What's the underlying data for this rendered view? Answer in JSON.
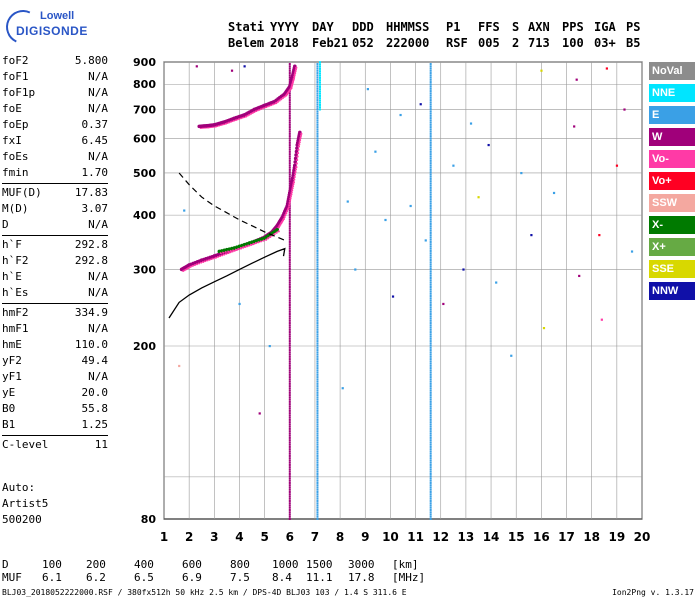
{
  "logo": {
    "line1": "Lowell",
    "line2": "DIGISONDE"
  },
  "header": {
    "labels": [
      "Stati",
      "YYYY",
      "DAY",
      "DDD",
      "HHMMSS",
      "P1",
      "FFS",
      "S",
      "AXN",
      "PPS",
      "IGA",
      "PS"
    ],
    "values": [
      "Belem",
      "2018",
      "Feb21",
      "052",
      "222000",
      "RSF",
      "005",
      "2",
      "713",
      "100",
      "03+",
      "B5"
    ]
  },
  "params": [
    {
      "group": 1,
      "name": "foF2",
      "value": "5.800"
    },
    {
      "group": 1,
      "name": "foF1",
      "value": "N/A"
    },
    {
      "group": 1,
      "name": "foF1p",
      "value": "N/A"
    },
    {
      "group": 1,
      "name": "foE",
      "value": "N/A"
    },
    {
      "group": 1,
      "name": "foEp",
      "value": "0.37"
    },
    {
      "group": 1,
      "name": "fxI",
      "value": "6.45"
    },
    {
      "group": 1,
      "name": "foEs",
      "value": "N/A"
    },
    {
      "group": 1,
      "name": "fmin",
      "value": "1.70"
    },
    {
      "group": 2,
      "name": "MUF(D)",
      "value": "17.83"
    },
    {
      "group": 2,
      "name": "M(D)",
      "value": "3.07"
    },
    {
      "group": 2,
      "name": "D",
      "value": "N/A"
    },
    {
      "group": 3,
      "name": "h`F",
      "value": "292.8"
    },
    {
      "group": 3,
      "name": "h`F2",
      "value": "292.8"
    },
    {
      "group": 3,
      "name": "h`E",
      "value": "N/A"
    },
    {
      "group": 3,
      "name": "h`Es",
      "value": "N/A"
    },
    {
      "group": 4,
      "name": "hmF2",
      "value": "334.9"
    },
    {
      "group": 4,
      "name": "hmF1",
      "value": "N/A"
    },
    {
      "group": 4,
      "name": "hmE",
      "value": "110.0"
    },
    {
      "group": 4,
      "name": "yF2",
      "value": "49.4"
    },
    {
      "group": 4,
      "name": "yF1",
      "value": "N/A"
    },
    {
      "group": 4,
      "name": "yE",
      "value": "20.0"
    },
    {
      "group": 4,
      "name": "B0",
      "value": "55.8"
    },
    {
      "group": 4,
      "name": "B1",
      "value": "1.25"
    },
    {
      "group": 5,
      "name": "C-level",
      "value": "11"
    }
  ],
  "auto": {
    "line1": "Auto:",
    "line2": "Artist5",
    "line3": "500200"
  },
  "legend": [
    {
      "label": "NoVal",
      "color": "#8c8c8c"
    },
    {
      "label": "NNE",
      "color": "#00e5ff"
    },
    {
      "label": "E",
      "color": "#3aa0e6"
    },
    {
      "label": "W",
      "color": "#a0007a"
    },
    {
      "label": "Vo-",
      "color": "#ff3aa6"
    },
    {
      "label": "Vo+",
      "color": "#ff0022"
    },
    {
      "label": "SSW",
      "color": "#f4a8a0"
    },
    {
      "label": "X-",
      "color": "#007a00"
    },
    {
      "label": "X+",
      "color": "#66aa44"
    },
    {
      "label": "SSE",
      "color": "#d8d800"
    },
    {
      "label": "NNW",
      "color": "#1010a8"
    }
  ],
  "dmuf": {
    "d_label": "D",
    "d_values": [
      "100",
      "200",
      "400",
      "600",
      "800",
      "1000",
      "1500",
      "3000",
      "[km]"
    ],
    "muf_label": "MUF",
    "muf_values": [
      "6.1",
      "6.2",
      "6.5",
      "6.9",
      "7.5",
      "8.4",
      "11.1",
      "17.8",
      "[MHz]"
    ]
  },
  "footer": {
    "left": "BLJ03_2018052222000.RSF / 380fx512h 50 kHz 2.5 km / DPS-4D BLJ03 103 / 1.4 S 311.6 E",
    "right": "Ion2Png v. 1.3.17"
  },
  "chart_data": {
    "type": "scatter",
    "x_range": [
      1,
      20
    ],
    "y_range": [
      80,
      900
    ],
    "x_ticks": [
      "1",
      "2",
      "3",
      "4",
      "5",
      "6",
      "7",
      "8",
      "9",
      "10",
      "11",
      "12",
      "13",
      "14",
      "15",
      "16",
      "17",
      "18",
      "19",
      "20"
    ],
    "y_ticks": [
      "80",
      "200",
      "300",
      "400",
      "500",
      "600",
      "700",
      "800",
      "900"
    ],
    "grid": true,
    "y_scale": "log",
    "traces": [
      {
        "color": "#a0007a",
        "points": [
          [
            1.7,
            300
          ],
          [
            2.0,
            307
          ],
          [
            2.5,
            315
          ],
          [
            3.0,
            322
          ],
          [
            3.5,
            330
          ],
          [
            4.0,
            338
          ],
          [
            4.5,
            346
          ],
          [
            5.0,
            356
          ],
          [
            5.3,
            366
          ],
          [
            5.5,
            378
          ],
          [
            5.7,
            395
          ],
          [
            5.9,
            420
          ],
          [
            6.0,
            450
          ],
          [
            6.1,
            480
          ],
          [
            6.2,
            520
          ],
          [
            6.3,
            580
          ],
          [
            6.4,
            620
          ]
        ]
      },
      {
        "color": "#a0007a",
        "points": [
          [
            2.4,
            640
          ],
          [
            2.7,
            642
          ],
          [
            3.0,
            645
          ],
          [
            3.4,
            655
          ],
          [
            3.8,
            668
          ],
          [
            4.2,
            680
          ],
          [
            4.6,
            700
          ],
          [
            5.0,
            715
          ],
          [
            5.4,
            730
          ],
          [
            5.8,
            760
          ],
          [
            6.0,
            790
          ],
          [
            6.1,
            830
          ],
          [
            6.2,
            880
          ]
        ]
      },
      {
        "color": "#007a00",
        "points": [
          [
            3.2,
            330
          ],
          [
            3.8,
            336
          ],
          [
            4.4,
            345
          ],
          [
            5.0,
            354
          ],
          [
            5.5,
            370
          ]
        ]
      }
    ],
    "fit_solid": [
      [
        1.2,
        232
      ],
      [
        1.6,
        252
      ],
      [
        2.0,
        262
      ],
      [
        2.5,
        272
      ],
      [
        3.0,
        281
      ],
      [
        3.5,
        290
      ],
      [
        4.0,
        300
      ],
      [
        4.5,
        310
      ],
      [
        5.0,
        320
      ],
      [
        5.5,
        330
      ],
      [
        5.8,
        335
      ],
      [
        5.75,
        322
      ]
    ],
    "fit_dashed": [
      [
        1.6,
        500
      ],
      [
        2.0,
        470
      ],
      [
        2.5,
        440
      ],
      [
        3.0,
        420
      ],
      [
        3.5,
        405
      ],
      [
        4.0,
        390
      ],
      [
        4.5,
        378
      ],
      [
        5.0,
        366
      ],
      [
        5.5,
        356
      ],
      [
        5.8,
        350
      ]
    ],
    "columns": [
      {
        "x": 6.0,
        "color": "#a0007a",
        "from": 80,
        "to": 900
      },
      {
        "x": 7.1,
        "color": "#3aa0e6",
        "from": 80,
        "to": 900
      },
      {
        "x": 11.6,
        "color": "#3aa0e6",
        "from": 80,
        "to": 900
      },
      {
        "x": 7.2,
        "color": "#00e5ff",
        "from": 700,
        "to": 900
      }
    ],
    "scatter": [
      {
        "x": 8.1,
        "y": 160,
        "c": "#3aa0e6"
      },
      {
        "x": 8.3,
        "y": 430,
        "c": "#3aa0e6"
      },
      {
        "x": 8.6,
        "y": 300,
        "c": "#3aa0e6"
      },
      {
        "x": 9.1,
        "y": 780,
        "c": "#3aa0e6"
      },
      {
        "x": 9.4,
        "y": 560,
        "c": "#3aa0e6"
      },
      {
        "x": 9.8,
        "y": 390,
        "c": "#3aa0e6"
      },
      {
        "x": 10.1,
        "y": 260,
        "c": "#1010a8"
      },
      {
        "x": 10.4,
        "y": 680,
        "c": "#3aa0e6"
      },
      {
        "x": 10.8,
        "y": 420,
        "c": "#3aa0e6"
      },
      {
        "x": 11.2,
        "y": 720,
        "c": "#1010a8"
      },
      {
        "x": 11.4,
        "y": 350,
        "c": "#3aa0e6"
      },
      {
        "x": 12.1,
        "y": 250,
        "c": "#a0007a"
      },
      {
        "x": 12.5,
        "y": 520,
        "c": "#3aa0e6"
      },
      {
        "x": 12.9,
        "y": 300,
        "c": "#1010a8"
      },
      {
        "x": 13.2,
        "y": 650,
        "c": "#3aa0e6"
      },
      {
        "x": 13.5,
        "y": 440,
        "c": "#d8d800"
      },
      {
        "x": 13.9,
        "y": 580,
        "c": "#1010a8"
      },
      {
        "x": 14.2,
        "y": 280,
        "c": "#3aa0e6"
      },
      {
        "x": 14.8,
        "y": 190,
        "c": "#3aa0e6"
      },
      {
        "x": 15.2,
        "y": 500,
        "c": "#3aa0e6"
      },
      {
        "x": 15.6,
        "y": 360,
        "c": "#1010a8"
      },
      {
        "x": 16.0,
        "y": 860,
        "c": "#d8d800"
      },
      {
        "x": 16.1,
        "y": 220,
        "c": "#d8d800"
      },
      {
        "x": 16.5,
        "y": 450,
        "c": "#3aa0e6"
      },
      {
        "x": 17.3,
        "y": 640,
        "c": "#a0007a"
      },
      {
        "x": 17.4,
        "y": 820,
        "c": "#a0007a"
      },
      {
        "x": 17.5,
        "y": 290,
        "c": "#a0007a"
      },
      {
        "x": 18.3,
        "y": 360,
        "c": "#ff0022"
      },
      {
        "x": 18.4,
        "y": 230,
        "c": "#ff3aa6"
      },
      {
        "x": 18.6,
        "y": 870,
        "c": "#ff0022"
      },
      {
        "x": 19.0,
        "y": 520,
        "c": "#ff0022"
      },
      {
        "x": 19.3,
        "y": 700,
        "c": "#a0007a"
      },
      {
        "x": 19.6,
        "y": 330,
        "c": "#3aa0e6"
      },
      {
        "x": 2.3,
        "y": 880,
        "c": "#a0007a"
      },
      {
        "x": 3.7,
        "y": 860,
        "c": "#a0007a"
      },
      {
        "x": 4.2,
        "y": 880,
        "c": "#1010a8"
      },
      {
        "x": 1.6,
        "y": 180,
        "c": "#f4a8a0"
      },
      {
        "x": 1.8,
        "y": 410,
        "c": "#3aa0e6"
      },
      {
        "x": 4.0,
        "y": 250,
        "c": "#3aa0e6"
      },
      {
        "x": 5.2,
        "y": 200,
        "c": "#3aa0e6"
      },
      {
        "x": 4.8,
        "y": 140,
        "c": "#a0007a"
      }
    ]
  }
}
